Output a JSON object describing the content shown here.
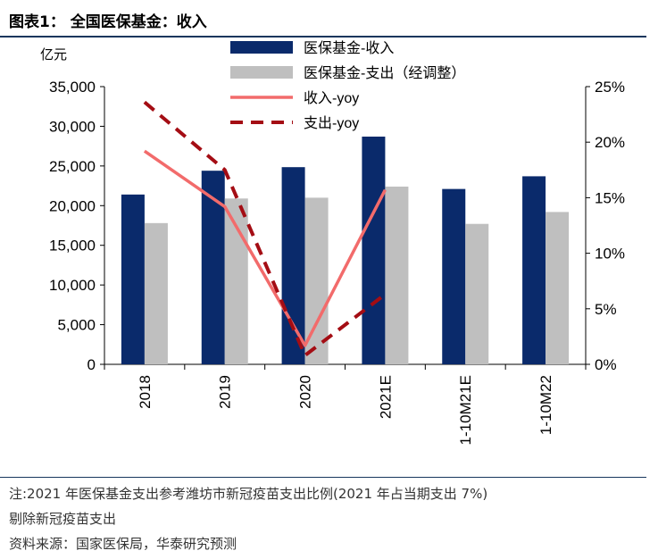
{
  "header": {
    "title": "图表1：  全国医保基金：收入"
  },
  "notes": {
    "line1": "注:2021 年医保基金支出参考潍坊市新冠疫苗支出比例(2021 年占当期支出 7%)",
    "line2": "剔除新冠疫苗支出",
    "source": "资料来源：国家医保局，华泰研究预测"
  },
  "colors": {
    "revenue_bar": "#0a2a6b",
    "expense_bar": "#bfbfbf",
    "revenue_yoy": "#f26b6b",
    "expense_yoy": "#a40d14",
    "rule": "#17365d"
  },
  "chart_data": {
    "type": "bar",
    "ylabel": "亿元",
    "categories": [
      "2018",
      "2019",
      "2020",
      "2021E",
      "1-10M21E",
      "1-10M22"
    ],
    "ylim": [
      0,
      35000
    ],
    "yticks": [
      "0",
      "5,000",
      "10,000",
      "15,000",
      "20,000",
      "25,000",
      "30,000",
      "35,000"
    ],
    "y2lim": [
      0,
      25
    ],
    "y2ticks": [
      "0%",
      "5%",
      "10%",
      "15%",
      "20%",
      "25%"
    ],
    "series": [
      {
        "name": "医保基金-收入",
        "kind": "bar",
        "axis": "left",
        "values": [
          21400,
          24400,
          24850,
          28700,
          22100,
          23700
        ]
      },
      {
        "name": "医保基金-支出（经调整）",
        "kind": "bar",
        "axis": "left",
        "values": [
          17800,
          20900,
          21000,
          22400,
          17700,
          19200
        ]
      },
      {
        "name": "收入-yoy",
        "kind": "line",
        "axis": "right",
        "style": "solid",
        "values": [
          19.2,
          14.2,
          1.7,
          15.7,
          null,
          null
        ]
      },
      {
        "name": "支出-yoy",
        "kind": "line",
        "axis": "right",
        "style": "dashed",
        "values": [
          23.6,
          17.5,
          0.8,
          6.3,
          null,
          null
        ]
      }
    ],
    "legend_position": "top-center",
    "grid": false
  }
}
